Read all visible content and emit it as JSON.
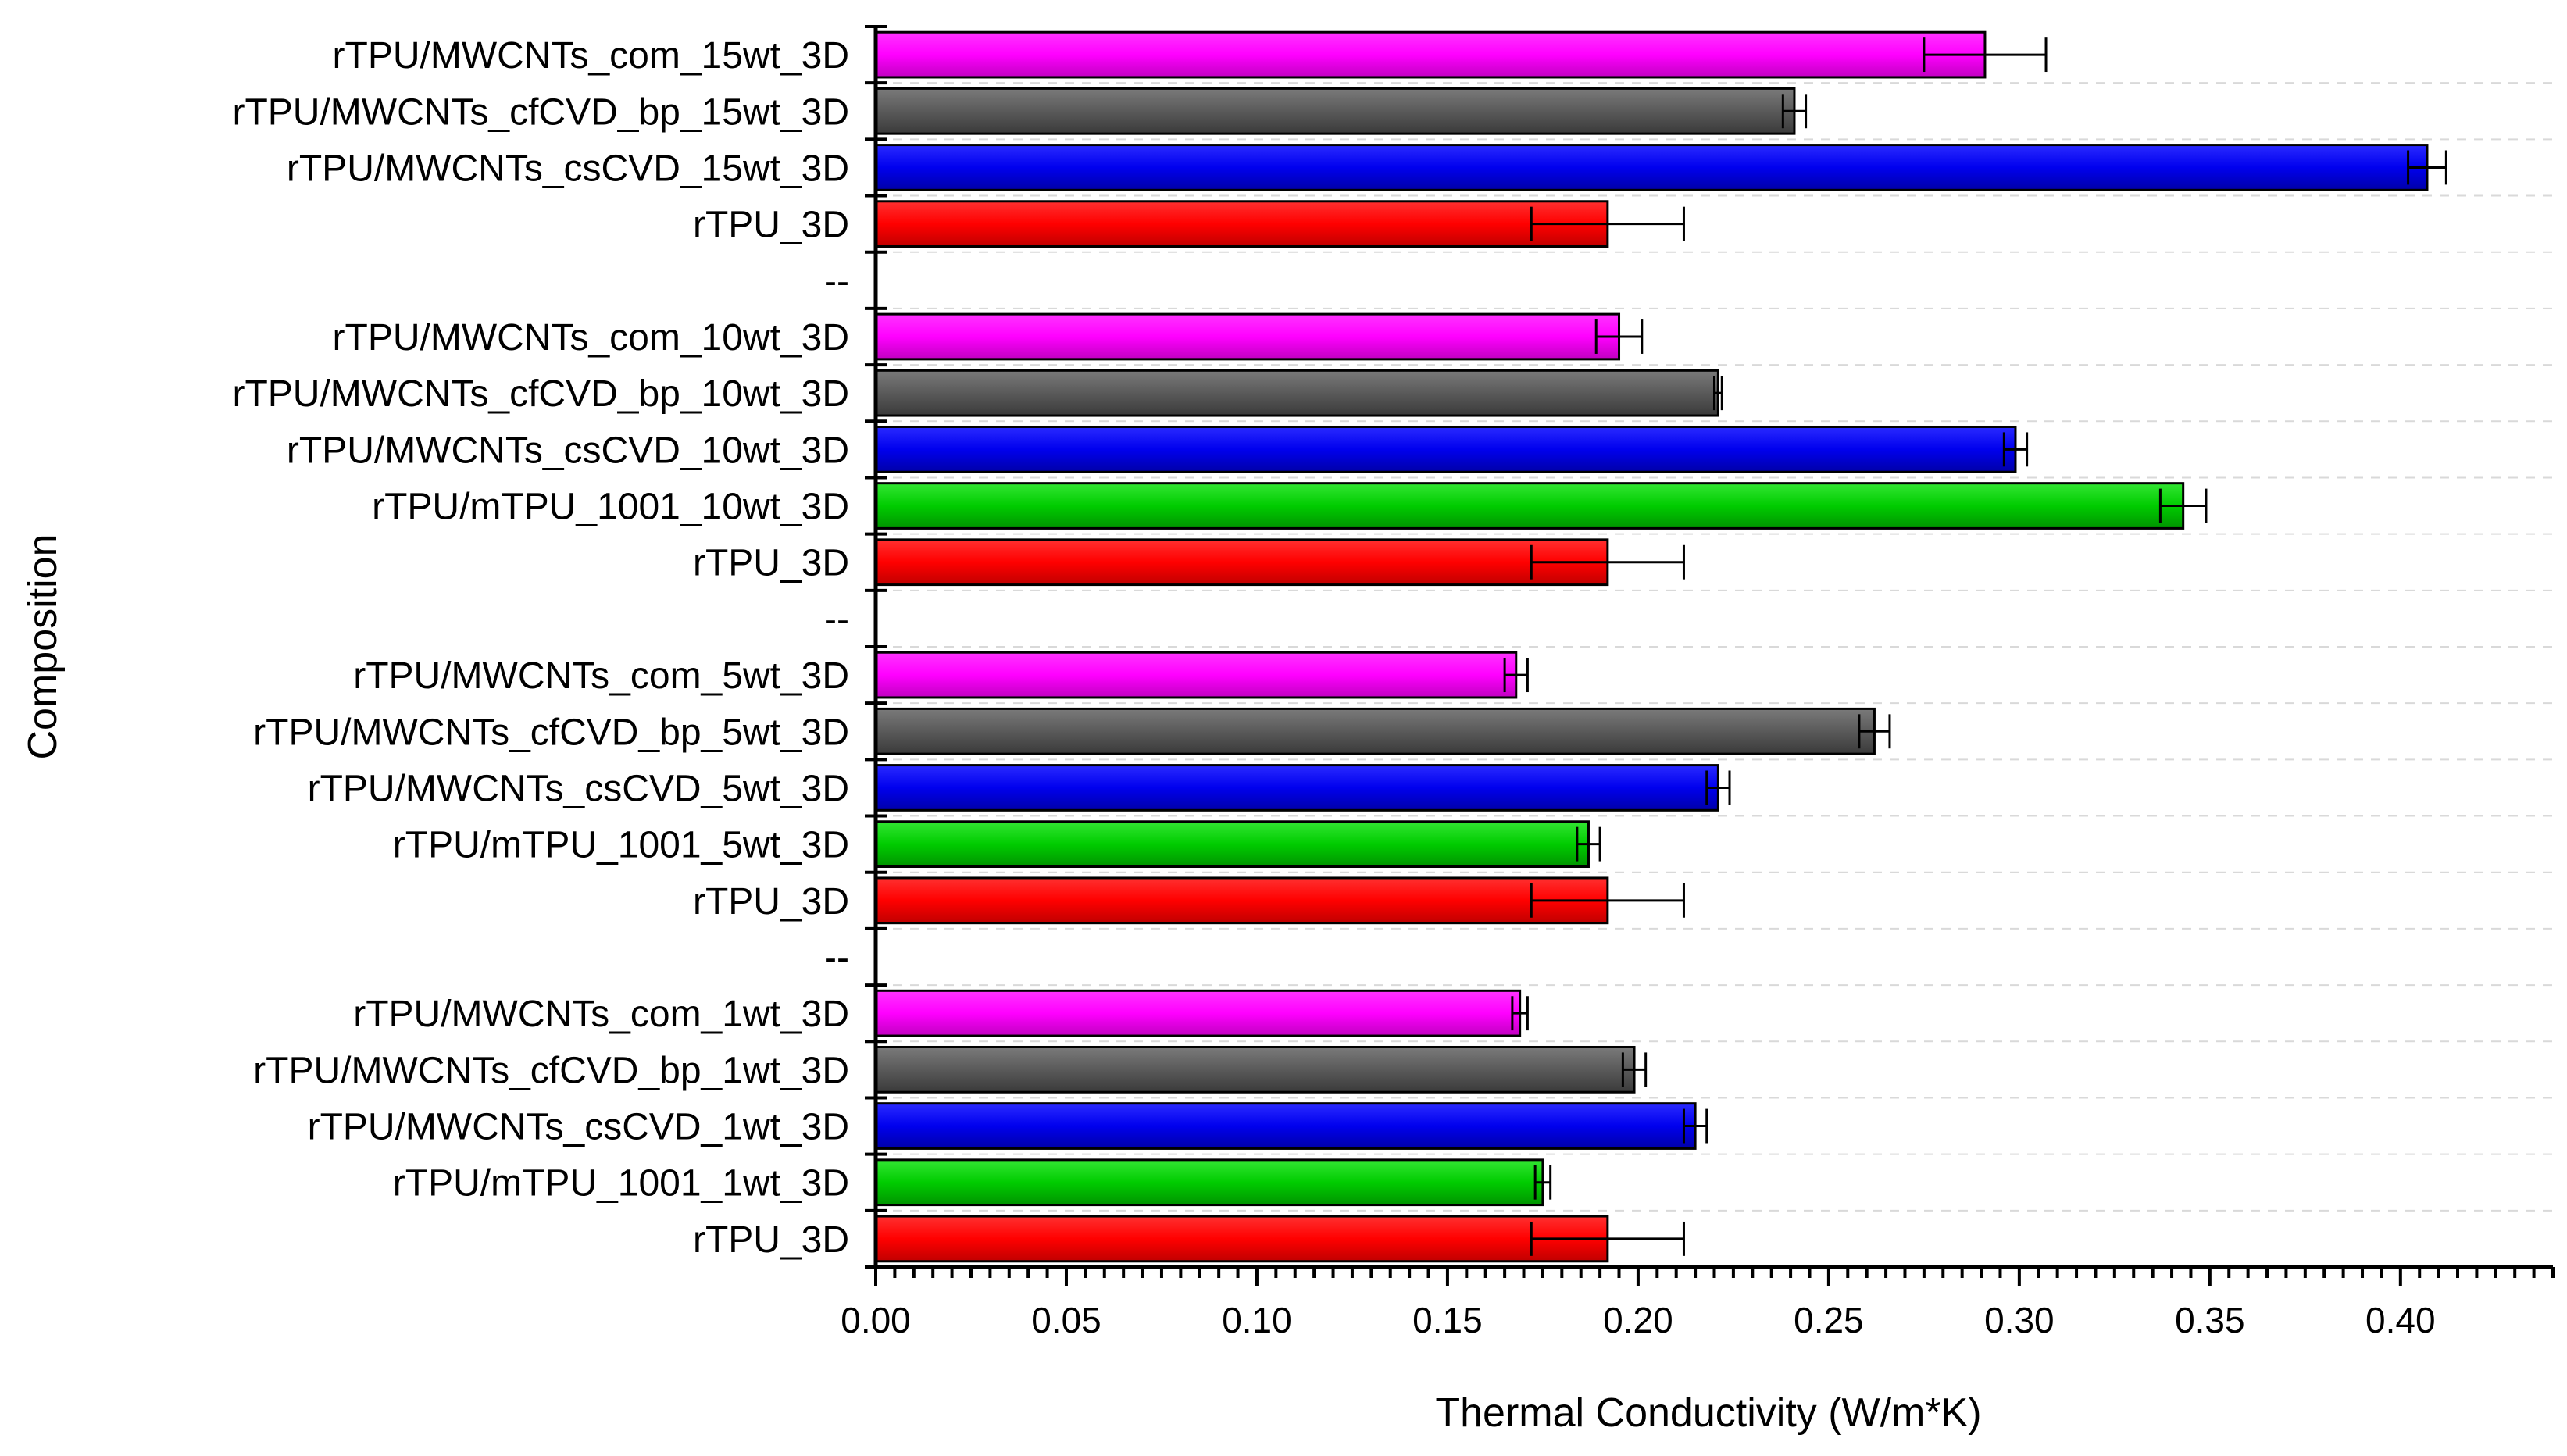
{
  "chart_data": {
    "type": "bar",
    "orientation": "horizontal",
    "title": "",
    "xlabel": "Thermal Conductivity (W/m*K)",
    "ylabel": "Composition",
    "xlim": [
      0,
      0.44
    ],
    "x_ticks": [
      "0.00",
      "0.05",
      "0.10",
      "0.15",
      "0.20",
      "0.25",
      "0.30",
      "0.35",
      "0.40"
    ],
    "grid": true,
    "legend": "none",
    "colors": {
      "com": "#ff00ff",
      "cfCVD_bp": "#5a5a5a",
      "csCVD": "#0000ee",
      "mTPU": "#00cc00",
      "rTPU": "#ff0000"
    },
    "categories": [
      {
        "label": "rTPU/MWCNTs_com_15wt_3D",
        "value": 0.291,
        "error": 0.016,
        "group": "com"
      },
      {
        "label": "rTPU/MWCNTs_cfCVD_bp_15wt_3D",
        "value": 0.241,
        "error": 0.003,
        "group": "cfCVD_bp"
      },
      {
        "label": "rTPU/MWCNTs_csCVD_15wt_3D",
        "value": 0.407,
        "error": 0.005,
        "group": "csCVD"
      },
      {
        "label": "rTPU_3D",
        "value": 0.192,
        "error": 0.02,
        "group": "rTPU"
      },
      {
        "label": "--",
        "value": null,
        "error": null,
        "group": null
      },
      {
        "label": "rTPU/MWCNTs_com_10wt_3D",
        "value": 0.195,
        "error": 0.006,
        "group": "com"
      },
      {
        "label": "rTPU/MWCNTs_cfCVD_bp_10wt_3D",
        "value": 0.221,
        "error": 0.001,
        "group": "cfCVD_bp"
      },
      {
        "label": "rTPU/MWCNTs_csCVD_10wt_3D",
        "value": 0.299,
        "error": 0.003,
        "group": "csCVD"
      },
      {
        "label": "rTPU/mTPU_1001_10wt_3D",
        "value": 0.343,
        "error": 0.006,
        "group": "mTPU"
      },
      {
        "label": "rTPU_3D",
        "value": 0.192,
        "error": 0.02,
        "group": "rTPU"
      },
      {
        "label": "--",
        "value": null,
        "error": null,
        "group": null
      },
      {
        "label": "rTPU/MWCNTs_com_5wt_3D",
        "value": 0.168,
        "error": 0.003,
        "group": "com"
      },
      {
        "label": "rTPU/MWCNTs_cfCVD_bp_5wt_3D",
        "value": 0.262,
        "error": 0.004,
        "group": "cfCVD_bp"
      },
      {
        "label": "rTPU/MWCNTs_csCVD_5wt_3D",
        "value": 0.221,
        "error": 0.003,
        "group": "csCVD"
      },
      {
        "label": "rTPU/mTPU_1001_5wt_3D",
        "value": 0.187,
        "error": 0.003,
        "group": "mTPU"
      },
      {
        "label": "rTPU_3D",
        "value": 0.192,
        "error": 0.02,
        "group": "rTPU"
      },
      {
        "label": "--",
        "value": null,
        "error": null,
        "group": null
      },
      {
        "label": "rTPU/MWCNTs_com_1wt_3D",
        "value": 0.169,
        "error": 0.002,
        "group": "com"
      },
      {
        "label": "rTPU/MWCNTs_cfCVD_bp_1wt_3D",
        "value": 0.199,
        "error": 0.003,
        "group": "cfCVD_bp"
      },
      {
        "label": "rTPU/MWCNTs_csCVD_1wt_3D",
        "value": 0.215,
        "error": 0.003,
        "group": "csCVD"
      },
      {
        "label": "rTPU/mTPU_1001_1wt_3D",
        "value": 0.175,
        "error": 0.002,
        "group": "mTPU"
      },
      {
        "label": "rTPU_3D",
        "value": 0.192,
        "error": 0.02,
        "group": "rTPU"
      }
    ]
  }
}
